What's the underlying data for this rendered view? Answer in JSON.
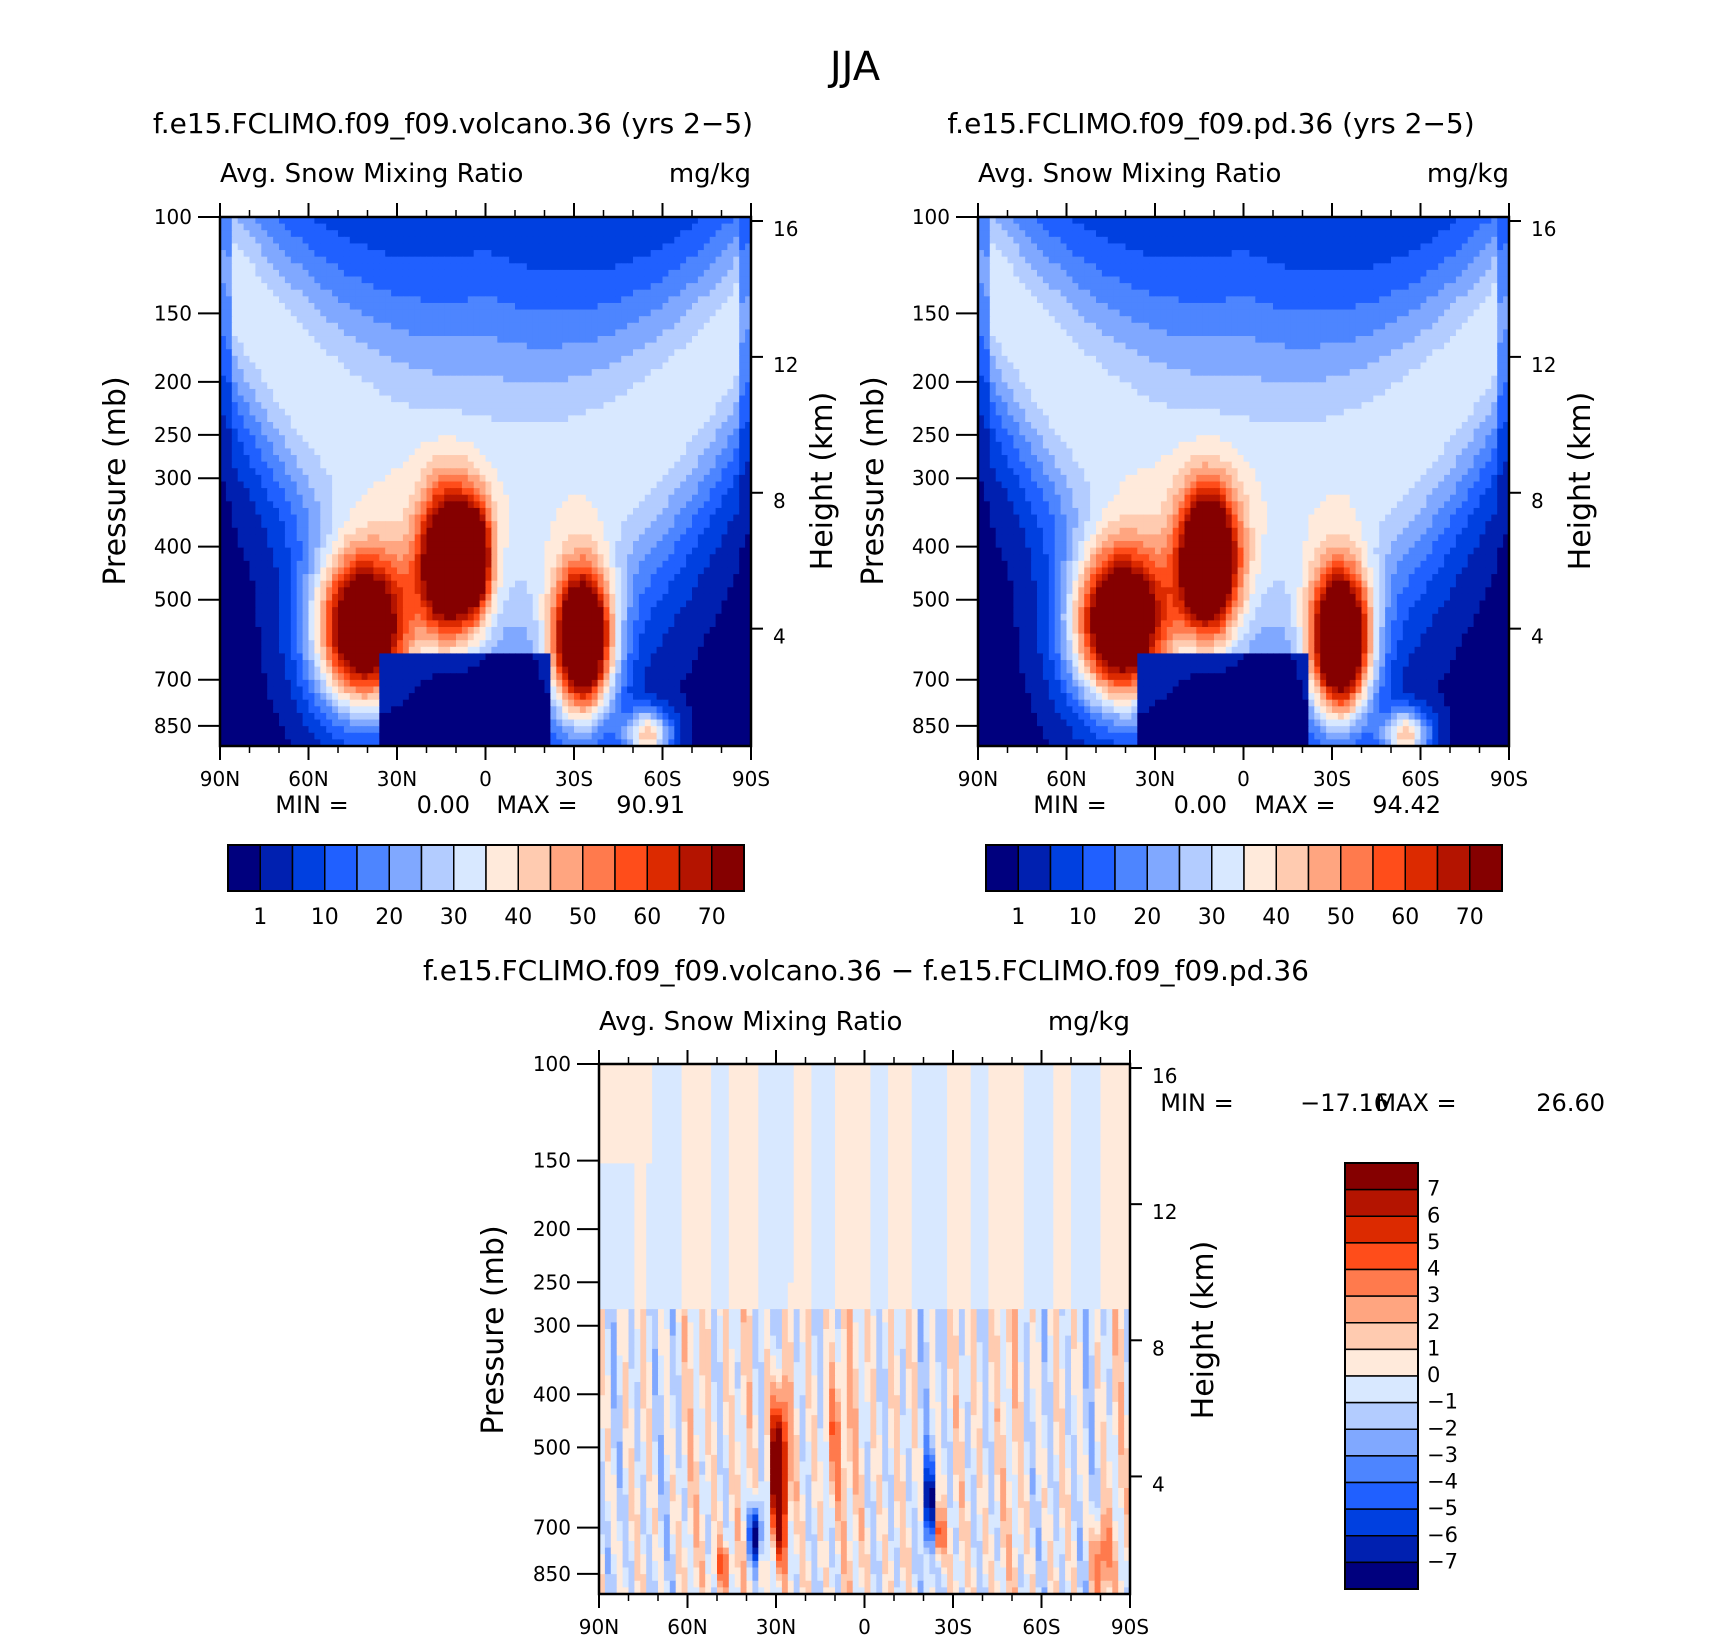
{
  "main_title": "JJA",
  "chart_data": [
    {
      "type": "heatmap",
      "id": "volcano",
      "title": "f.e15.FCLIMO.f09_f09.volcano.36 (yrs 2−5)",
      "variable": "Avg. Snow Mixing Ratio",
      "units": "mg/kg",
      "ylabel": "Pressure (mb)",
      "ylabel_right": "Height (km)",
      "pressure_ticks": [
        "100",
        "150",
        "200",
        "250",
        "300",
        "400",
        "500",
        "700",
        "850"
      ],
      "height_ticks": [
        "16",
        "12",
        "8",
        "4"
      ],
      "x_ticks": [
        "90N",
        "60N",
        "30N",
        "0",
        "30S",
        "60S",
        "90S"
      ],
      "xlim": [
        90,
        -90
      ],
      "ylim_mb": [
        100,
        925
      ],
      "y_scale": "log",
      "stats": {
        "min_label": "MIN =",
        "min": "0.00",
        "max_label": "MAX =",
        "max": "90.91"
      },
      "colorbar": {
        "orientation": "horizontal",
        "labels": [
          "1",
          "10",
          "20",
          "30",
          "40",
          "50",
          "60",
          "70"
        ]
      },
      "features": [
        {
          "lat": 42,
          "p": 570,
          "value": 85,
          "sx": 16,
          "sy": 0.32
        },
        {
          "lat": 12,
          "p": 430,
          "value": 78,
          "sx": 10,
          "sy": 0.3
        },
        {
          "lat": -33,
          "p": 600,
          "value": 90.91,
          "sx": 10,
          "sy": 0.3
        },
        {
          "lat": 3,
          "p": 420,
          "value": 38,
          "sx": 5,
          "sy": 0.22
        },
        {
          "lat": -55,
          "p": 880,
          "value": 42,
          "sx": 8,
          "sy": 0.1
        }
      ]
    },
    {
      "type": "heatmap",
      "id": "pd",
      "title": "f.e15.FCLIMO.f09_f09.pd.36 (yrs 2−5)",
      "variable": "Avg. Snow Mixing Ratio",
      "units": "mg/kg",
      "ylabel": "Pressure (mb)",
      "ylabel_right": "Height (km)",
      "pressure_ticks": [
        "100",
        "150",
        "200",
        "250",
        "300",
        "400",
        "500",
        "700",
        "850"
      ],
      "height_ticks": [
        "16",
        "12",
        "8",
        "4"
      ],
      "x_ticks": [
        "90N",
        "60N",
        "30N",
        "0",
        "30S",
        "60S",
        "90S"
      ],
      "xlim": [
        90,
        -90
      ],
      "ylim_mb": [
        100,
        925
      ],
      "y_scale": "log",
      "stats": {
        "min_label": "MIN =",
        "min": "0.00",
        "max_label": "MAX =",
        "max": "94.42"
      },
      "colorbar": {
        "orientation": "horizontal",
        "labels": [
          "1",
          "10",
          "20",
          "30",
          "40",
          "50",
          "60",
          "70"
        ]
      },
      "features": [
        {
          "lat": 42,
          "p": 560,
          "value": 88,
          "sx": 16,
          "sy": 0.32
        },
        {
          "lat": 12,
          "p": 430,
          "value": 80,
          "sx": 10,
          "sy": 0.3
        },
        {
          "lat": -33,
          "p": 600,
          "value": 94.42,
          "sx": 10,
          "sy": 0.3
        },
        {
          "lat": -55,
          "p": 880,
          "value": 42,
          "sx": 8,
          "sy": 0.1
        }
      ]
    },
    {
      "type": "heatmap",
      "id": "diff",
      "title": "f.e15.FCLIMO.f09_f09.volcano.36 − f.e15.FCLIMO.f09_f09.pd.36",
      "variable": "Avg. Snow Mixing Ratio",
      "units": "mg/kg",
      "ylabel": "Pressure (mb)",
      "ylabel_right": "Height (km)",
      "pressure_ticks": [
        "100",
        "150",
        "200",
        "250",
        "300",
        "400",
        "500",
        "700",
        "850"
      ],
      "height_ticks": [
        "16",
        "12",
        "8",
        "4"
      ],
      "x_ticks": [
        "90N",
        "60N",
        "30N",
        "0",
        "30S",
        "60S",
        "90S"
      ],
      "xlim": [
        90,
        -90
      ],
      "ylim_mb": [
        100,
        925
      ],
      "y_scale": "log",
      "stats": {
        "min_label": "MIN =",
        "min": "−17.16",
        "max_label": "MAX =",
        "max": "26.60"
      },
      "colorbar": {
        "orientation": "vertical",
        "labels": [
          "7",
          "6",
          "5",
          "4",
          "3",
          "2",
          "1",
          "0",
          "−1",
          "−2",
          "−3",
          "−4",
          "−5",
          "−6",
          "−7"
        ]
      },
      "features": [
        {
          "lat": 29,
          "p": 560,
          "value": 12,
          "sx": 3,
          "sy": 0.35
        },
        {
          "lat": 10,
          "p": 480,
          "value": 3,
          "sx": 4,
          "sy": 0.3
        },
        {
          "lat": 37,
          "p": 720,
          "value": -9,
          "sx": 2,
          "sy": 0.12
        },
        {
          "lat": -22,
          "p": 640,
          "value": -7,
          "sx": 2,
          "sy": 0.2
        },
        {
          "lat": -25,
          "p": 720,
          "value": 6,
          "sx": 2,
          "sy": 0.12
        },
        {
          "lat": -80,
          "p": 800,
          "value": 5,
          "sx": 3,
          "sy": 0.18
        },
        {
          "lat": 48,
          "p": 820,
          "value": 4,
          "sx": 3,
          "sy": 0.1
        }
      ]
    }
  ],
  "colors": {
    "absolute_levels": [
      "#00007e",
      "#0020b0",
      "#0040e0",
      "#2060ff",
      "#4d85ff",
      "#80a8ff",
      "#b3ccff",
      "#d8e8ff",
      "#ffeadb",
      "#ffcbb0",
      "#ffa580",
      "#ff7a4d",
      "#ff4d1a",
      "#dc2a00",
      "#b41400",
      "#850000"
    ],
    "diff_levels": [
      "#850000",
      "#b41400",
      "#dc2a00",
      "#ff4d1a",
      "#ff7a4d",
      "#ffa580",
      "#ffcbb0",
      "#ffeadb",
      "#d8e8ff",
      "#b3ccff",
      "#80a8ff",
      "#4d85ff",
      "#2060ff",
      "#0040e0",
      "#0020b0",
      "#00007e"
    ]
  }
}
